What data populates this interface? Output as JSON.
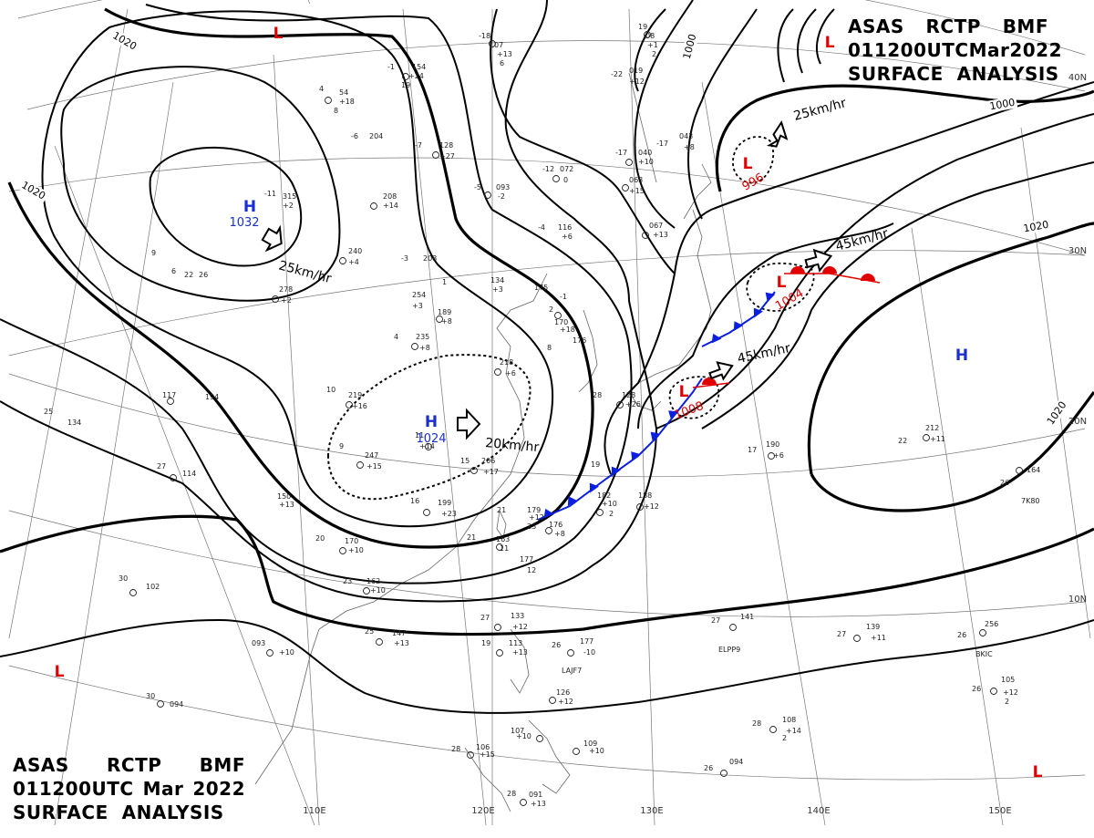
{
  "title_top": {
    "line1": [
      "ASAS",
      "RCTP",
      "BMF"
    ],
    "line2": [
      "011200UTC",
      "Mar",
      "2022"
    ],
    "line3": "SURFACE  ANALYSIS"
  },
  "title_bottom": {
    "line1": [
      "ASAS",
      "RCTP",
      "BMF"
    ],
    "line2": [
      "011200UTC",
      "Mar",
      "2022"
    ],
    "line3": "SURFACE  ANALYSIS"
  },
  "latitude_labels": [
    "40N",
    "30N",
    "20N",
    "10N"
  ],
  "longitude_labels": [
    "110E",
    "120E",
    "130E",
    "140E",
    "150E"
  ],
  "isobar_labels": [
    "1020",
    "1020",
    "1000",
    "1000",
    "1020",
    "1020"
  ],
  "pressure_centers": [
    {
      "type": "H",
      "value": "1032",
      "color": "#1a2fd0"
    },
    {
      "type": "H",
      "value": "1024",
      "color": "#1a2fd0"
    },
    {
      "type": "H",
      "value": "",
      "color": "#1a2fd0"
    },
    {
      "type": "L",
      "value": "996",
      "color": "#e00000"
    },
    {
      "type": "L",
      "value": "1004",
      "color": "#e00000"
    },
    {
      "type": "L",
      "value": "1008",
      "color": "#e00000"
    },
    {
      "type": "L",
      "value": "",
      "color": "#e00000"
    },
    {
      "type": "L",
      "value": "",
      "color": "#e00000"
    },
    {
      "type": "L",
      "value": "",
      "color": "#e00000"
    },
    {
      "type": "L",
      "value": "",
      "color": "#e00000"
    }
  ],
  "motion_vectors": [
    "25km/hr",
    "20km/hr",
    "25km/hr",
    "45km/hr",
    "45km/hr"
  ],
  "colors": {
    "cold_front": "#0a1fe0",
    "warm_front": "#e00000",
    "isobar": "#000000"
  },
  "station_plots": [
    "-18",
    "07",
    "+13",
    "6",
    "19",
    "08",
    "+1",
    "2",
    "-1",
    "154",
    "+24",
    "19",
    "4",
    "54",
    "+18",
    "8",
    "-22",
    "019",
    "+12",
    "-17",
    "043",
    "+8",
    "-6",
    "204",
    "-7",
    "128",
    "+27",
    "-12",
    "072",
    "0",
    "-5",
    "093",
    "-2",
    "-17",
    "040",
    "+10",
    "063",
    "+15",
    "-11",
    "315",
    "+2",
    "208",
    "+14",
    "067",
    "+13",
    "240",
    "+4",
    "-4",
    "116",
    "+6",
    "-3",
    "208",
    "254",
    "+3",
    "134",
    "+3",
    "175",
    "-1",
    "278",
    "+2",
    "1",
    "189",
    "+8",
    "2",
    "170",
    "+18",
    "9",
    "6",
    "22",
    "26",
    "4",
    "235",
    "+8",
    "8",
    "176",
    "10",
    "219",
    "+16",
    "218",
    "+6",
    "117",
    "194",
    "25",
    "134",
    "128",
    "+26",
    "28",
    "9",
    "247",
    "+15",
    "11",
    "+14",
    "15",
    "206",
    "+17",
    "19",
    "27",
    "114",
    "17",
    "190",
    "+6",
    "22",
    "212",
    "+11",
    "150",
    "+13",
    "16",
    "199",
    "+23",
    "182",
    "+10",
    "2",
    "188",
    "+12",
    "26",
    "164",
    "7K80",
    "21",
    "179",
    "+12",
    "23",
    "176",
    "+8",
    "21",
    "163",
    "11",
    "177",
    "12",
    "20",
    "170",
    "+10",
    "23",
    "162",
    "+10",
    "30",
    "102",
    "25",
    "147",
    "+13",
    "27",
    "133",
    "+12",
    "27",
    "141",
    "ELPP9",
    "27",
    "139",
    "+11",
    "26",
    "256",
    "BKIC",
    "093",
    "+10",
    "19",
    "113",
    "+13",
    "26",
    "177",
    "-10",
    "LAJF7",
    "26",
    "105",
    "+12",
    "2",
    "30",
    "094",
    "126",
    "+12",
    "28",
    "108",
    "+14",
    "2",
    "28",
    "106",
    "+15",
    "107",
    "+10",
    "109",
    "+10",
    "26",
    "094",
    "28",
    "091",
    "+13"
  ]
}
